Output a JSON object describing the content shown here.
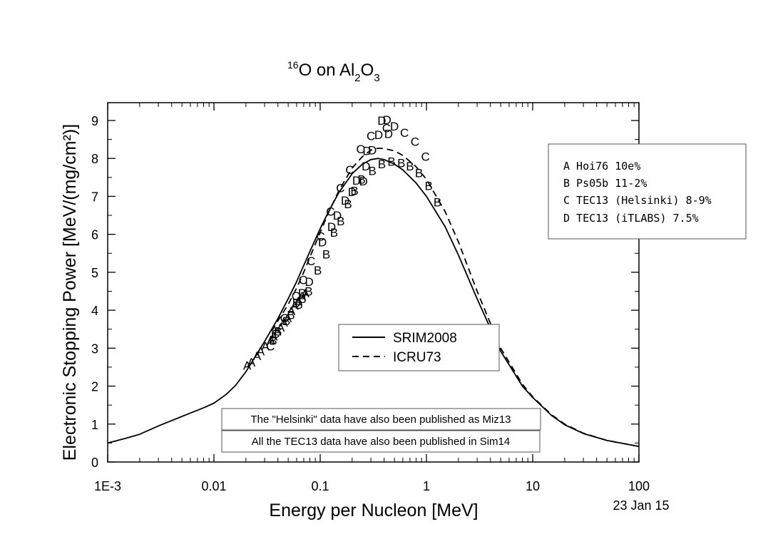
{
  "chart_data": {
    "type": "line",
    "title": {
      "mass_number": "16",
      "text_parts": [
        {
          "text": "O on Al",
          "shift": "base"
        },
        {
          "text": "2",
          "shift": "sub"
        },
        {
          "text": "O",
          "shift": "base"
        },
        {
          "text": "3",
          "shift": "sub"
        }
      ]
    },
    "xlabel": "Energy per Nucleon [MeV]",
    "ylabel": "Electronic Stopping Power [MeV/(mg/cm²)]",
    "x_scale": "log",
    "xlim": [
      0.001,
      100
    ],
    "ylim": [
      0,
      9
    ],
    "x_ticks": [
      {
        "value": 0.001,
        "label": "1E-3"
      },
      {
        "value": 0.01,
        "label": "0.01"
      },
      {
        "value": 0.1,
        "label": "0.1"
      },
      {
        "value": 1,
        "label": "1"
      },
      {
        "value": 10,
        "label": "10"
      },
      {
        "value": 100,
        "label": "100"
      }
    ],
    "y_ticks": [
      {
        "value": 0,
        "label": "0"
      },
      {
        "value": 1,
        "label": "1"
      },
      {
        "value": 2,
        "label": "2"
      },
      {
        "value": 3,
        "label": "3"
      },
      {
        "value": 4,
        "label": "4"
      },
      {
        "value": 5,
        "label": "5"
      },
      {
        "value": 6,
        "label": "6"
      },
      {
        "value": 7,
        "label": "7"
      },
      {
        "value": 8,
        "label": "8"
      },
      {
        "value": 9,
        "label": "9"
      }
    ],
    "grid": false,
    "series": [
      {
        "name": "SRIM2008",
        "style": "solid",
        "x": [
          0.001,
          0.0015,
          0.002,
          0.003,
          0.005,
          0.008,
          0.01,
          0.013,
          0.016,
          0.02,
          0.025,
          0.03,
          0.04,
          0.05,
          0.06,
          0.07,
          0.08,
          0.1,
          0.12,
          0.15,
          0.2,
          0.25,
          0.3,
          0.35,
          0.4,
          0.5,
          0.6,
          0.8,
          1.0,
          1.5,
          2.0,
          3.0,
          5.0,
          8.0,
          10.0,
          15.0,
          20.0,
          30.0,
          50.0,
          100.0
        ],
        "y": [
          0.5,
          0.63,
          0.73,
          0.95,
          1.2,
          1.43,
          1.55,
          1.78,
          2.02,
          2.38,
          2.82,
          3.18,
          3.78,
          4.3,
          4.75,
          5.18,
          5.55,
          6.15,
          6.6,
          7.1,
          7.6,
          7.85,
          7.97,
          8.0,
          7.97,
          7.85,
          7.7,
          7.35,
          7.0,
          6.2,
          5.45,
          4.3,
          2.92,
          2.0,
          1.7,
          1.23,
          0.98,
          0.75,
          0.57,
          0.41
        ]
      },
      {
        "name": "ICRU73",
        "style": "dashed",
        "x": [
          0.035,
          0.04,
          0.05,
          0.06,
          0.07,
          0.08,
          0.1,
          0.12,
          0.15,
          0.2,
          0.25,
          0.3,
          0.35,
          0.4,
          0.5,
          0.6,
          0.8,
          1.0,
          1.5,
          2.0,
          3.0,
          5.0,
          8.0,
          10.0,
          15.0,
          20.0,
          30.0,
          50.0,
          100.0
        ],
        "y": [
          3.45,
          3.72,
          4.15,
          4.58,
          5.0,
          5.4,
          6.05,
          6.58,
          7.15,
          7.75,
          8.05,
          8.22,
          8.27,
          8.26,
          8.2,
          8.08,
          7.78,
          7.45,
          6.6,
          5.8,
          4.5,
          3.0,
          2.05,
          1.72,
          1.25,
          1.0,
          0.76,
          0.57,
          0.41
        ]
      }
    ],
    "markers": [
      {
        "label": "A",
        "points": [
          [
            0.0205,
            2.55
          ],
          [
            0.0225,
            2.63
          ],
          [
            0.0255,
            2.8
          ],
          [
            0.0275,
            2.92
          ],
          [
            0.0305,
            3.05
          ],
          [
            0.0345,
            3.22
          ],
          [
            0.0365,
            3.32
          ],
          [
            0.0395,
            3.45
          ],
          [
            0.0425,
            3.55
          ],
          [
            0.0455,
            3.68
          ],
          [
            0.0495,
            3.8
          ],
          [
            0.0535,
            3.98
          ],
          [
            0.0575,
            4.12
          ],
          [
            0.0625,
            4.25
          ],
          [
            0.0675,
            4.38
          ],
          [
            0.0725,
            4.45
          ]
        ]
      },
      {
        "label": "B",
        "points": [
          [
            0.036,
            3.2
          ],
          [
            0.04,
            3.45
          ],
          [
            0.048,
            3.72
          ],
          [
            0.053,
            3.88
          ],
          [
            0.063,
            4.15
          ],
          [
            0.068,
            4.3
          ],
          [
            0.078,
            4.5
          ],
          [
            0.095,
            5.05
          ],
          [
            0.114,
            5.48
          ],
          [
            0.135,
            6.05
          ],
          [
            0.156,
            6.35
          ],
          [
            0.183,
            6.8
          ],
          [
            0.21,
            7.15
          ],
          [
            0.245,
            7.45
          ],
          [
            0.31,
            7.68
          ],
          [
            0.38,
            7.85
          ],
          [
            0.47,
            7.92
          ],
          [
            0.58,
            7.88
          ],
          [
            0.7,
            7.8
          ],
          [
            0.85,
            7.62
          ],
          [
            1.05,
            7.28
          ],
          [
            1.27,
            6.85
          ]
        ]
      },
      {
        "label": "C",
        "points": [
          [
            0.034,
            3.05
          ],
          [
            0.038,
            3.38
          ],
          [
            0.046,
            3.8
          ],
          [
            0.059,
            4.38
          ],
          [
            0.069,
            4.8
          ],
          [
            0.082,
            5.3
          ],
          [
            0.101,
            5.95
          ],
          [
            0.125,
            6.6
          ],
          [
            0.155,
            7.22
          ],
          [
            0.19,
            7.7
          ],
          [
            0.24,
            8.25
          ],
          [
            0.3,
            8.6
          ],
          [
            0.42,
            8.8
          ],
          [
            0.62,
            8.68
          ],
          [
            0.78,
            8.45
          ],
          [
            0.98,
            8.05
          ]
        ]
      },
      {
        "label": "D",
        "points": [
          [
            0.06,
            4.2
          ],
          [
            0.068,
            4.45
          ],
          [
            0.079,
            4.75
          ],
          [
            0.105,
            5.8
          ],
          [
            0.128,
            6.2
          ],
          [
            0.145,
            6.5
          ],
          [
            0.172,
            6.9
          ],
          [
            0.2,
            7.12
          ],
          [
            0.22,
            7.42
          ],
          [
            0.255,
            7.4
          ],
          [
            0.27,
            7.8
          ],
          [
            0.275,
            8.2
          ],
          [
            0.31,
            8.22
          ],
          [
            0.355,
            8.62
          ],
          [
            0.38,
            9.0
          ],
          [
            0.425,
            9.02
          ],
          [
            0.44,
            8.65
          ],
          [
            0.5,
            8.85
          ]
        ]
      }
    ],
    "legend_series": {
      "placement": "center",
      "entries": [
        "SRIM2008",
        "ICRU73"
      ]
    },
    "legend_refs": {
      "placement": "right",
      "entries": [
        "A Hoi76 10e%",
        "B Ps05b 11-2%",
        "C TEC13 (Helsinki) 8-9%",
        "D TEC13 (iTLABS) 7.5%"
      ]
    },
    "annotations": [
      "The \"Helsinki\" data have also been published as Miz13",
      "All the TEC13 data have also been published in Sim14"
    ],
    "date": "23 Jan 15"
  }
}
